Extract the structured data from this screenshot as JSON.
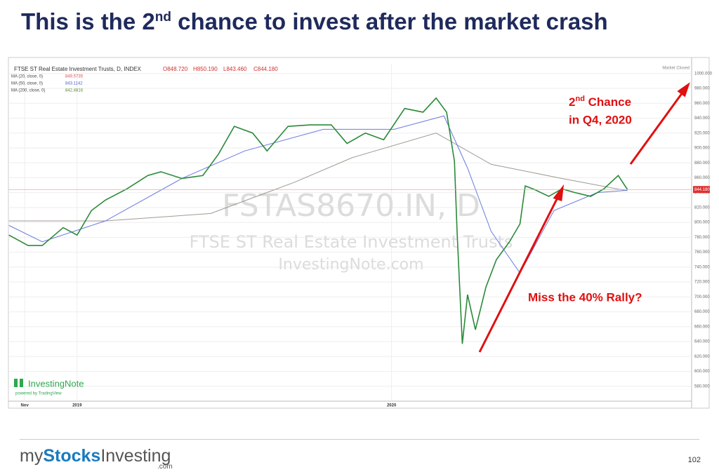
{
  "header": {
    "title": [
      "This is the 2",
      "nd",
      " chance to invest after the market crash"
    ]
  },
  "chart_data": {
    "type": "line",
    "legend_title": "FTSE ST Real Estate Investment Trusts, D, INDEX",
    "ohlc": [
      "O848.720",
      "H850.190",
      "L843.460",
      "C844.180"
    ],
    "ma_legend": [
      {
        "name": "MA (20, close, 0)",
        "value": "849.5735",
        "color": "#e0504c"
      },
      {
        "name": "MA (50, close, 0)",
        "value": "843.1142",
        "color": "#4a5fd0"
      },
      {
        "name": "MA (200, close, 0)",
        "value": "842.4816",
        "color": "#5a8a2a"
      }
    ],
    "market_status": "Market Closed",
    "watermark": [
      "FSTAS8670.IN, D",
      "FTSE ST Real Estate Investment Trusts",
      "InvestingNote.com"
    ],
    "brand": [
      "InvestingNote",
      "powered by TradingView"
    ],
    "last_price_label": "844.180",
    "series": [
      {
        "name": "Close",
        "color": "#2a8a3a",
        "x": [
          -0.6,
          0.13,
          0.67,
          1.47,
          2.0,
          2.55,
          3.08,
          3.9,
          4.7,
          5.2,
          6.0,
          6.8,
          7.4,
          8.0,
          8.7,
          9.25,
          10.05,
          10.9,
          11.7,
          12.3,
          13.0,
          13.7,
          14.5,
          15.2,
          15.7,
          16.1,
          16.4,
          16.5,
          16.7,
          16.9,
          17.2,
          17.6,
          18.0,
          18.5,
          18.9,
          19.1,
          19.4,
          20.0,
          20.5,
          21.0,
          21.6,
          22.1,
          22.65,
          23.0
        ],
        "values": [
          783,
          769,
          769,
          793,
          783,
          816,
          830,
          845,
          863,
          868,
          859,
          863,
          892,
          929,
          920,
          896,
          929,
          931,
          931,
          906,
          920,
          911,
          953,
          948,
          967,
          948,
          882,
          788,
          637,
          703,
          656,
          713,
          750,
          774,
          798,
          849,
          845,
          835,
          845,
          840,
          835,
          845,
          863,
          844.18
        ]
      },
      {
        "name": "MA (50, close, 0)",
        "color": "#6a7be0",
        "x": [
          -0.6,
          0.67,
          3.08,
          6.0,
          8.4,
          11.4,
          14.1,
          16.0,
          16.9,
          17.8,
          18.9,
          20.2,
          21.85,
          23.0
        ],
        "values": [
          796,
          774,
          802,
          859,
          896,
          925,
          925,
          943,
          873,
          788,
          732,
          816,
          840,
          843.1142
        ]
      },
      {
        "name": "MA (200, close, 0)",
        "color": "#a09a90",
        "x": [
          -0.6,
          3.08,
          7.1,
          10.3,
          12.5,
          15.7,
          17.8,
          20.5,
          23.0
        ],
        "values": [
          802,
          802,
          812,
          854,
          887,
          920,
          878,
          859,
          842.4816
        ]
      }
    ],
    "xlim": [
      -0.62,
      25.45
    ],
    "xticks": [
      {
        "value": 0,
        "label": "Nov"
      },
      {
        "value": 2,
        "label": "2019"
      },
      {
        "value": 14,
        "label": "2020"
      }
    ],
    "ylim": [
      560,
      1012
    ],
    "yticks": [
      {
        "value": 580,
        "label": "580.000"
      },
      {
        "value": 600,
        "label": "600.000"
      },
      {
        "value": 620,
        "label": "620.000"
      },
      {
        "value": 640,
        "label": "640.000"
      },
      {
        "value": 660,
        "label": "660.000"
      },
      {
        "value": 680,
        "label": "680.000"
      },
      {
        "value": 700,
        "label": "700.000"
      },
      {
        "value": 720,
        "label": "720.000"
      },
      {
        "value": 740,
        "label": "740.000"
      },
      {
        "value": 760,
        "label": "760.000"
      },
      {
        "value": 780,
        "label": "780.000"
      },
      {
        "value": 800,
        "label": "800.000"
      },
      {
        "value": 820,
        "label": "820.000"
      },
      {
        "value": 840,
        "label": "840.000"
      },
      {
        "value": 860,
        "label": "860.000"
      },
      {
        "value": 880,
        "label": "880.000"
      },
      {
        "value": 900,
        "label": "900.000"
      },
      {
        "value": 920,
        "label": "920.000"
      },
      {
        "value": 940,
        "label": "940.000"
      },
      {
        "value": 960,
        "label": "960.000"
      },
      {
        "value": 980,
        "label": "980.000"
      },
      {
        "value": 1000,
        "label": "1000.000"
      }
    ],
    "grid": true,
    "annotations": [
      {
        "text": "Miss the 40% Rally?"
      },
      {
        "text": [
          "2",
          "nd",
          " Chance",
          "in Q4, 2020"
        ]
      }
    ]
  },
  "footer": {
    "logo": [
      "my",
      "Stocks",
      "Investing",
      ".com"
    ],
    "page": "102"
  }
}
